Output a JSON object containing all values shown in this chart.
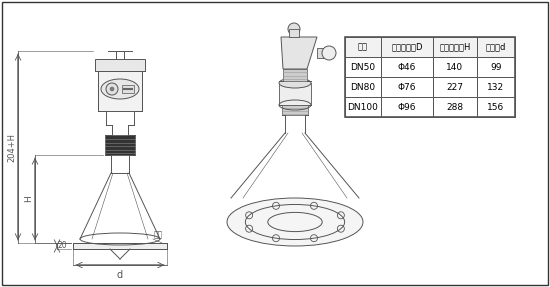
{
  "bg_color": "#ffffff",
  "line_color": "#555555",
  "table_header": [
    "法兰",
    "喇叭口直径D",
    "喇叭口高度H",
    "四螺盘d"
  ],
  "table_rows": [
    [
      "DN50",
      "Φ46",
      "140",
      "99"
    ],
    [
      "DN80",
      "Φ76",
      "227",
      "132"
    ],
    [
      "DN100",
      "Φ96",
      "288",
      "156"
    ]
  ],
  "dim_label_204H": "204+H",
  "dim_label_H": "H",
  "dim_label_20": "20",
  "dim_label_d": "d",
  "dim_label_flange": "法兰"
}
